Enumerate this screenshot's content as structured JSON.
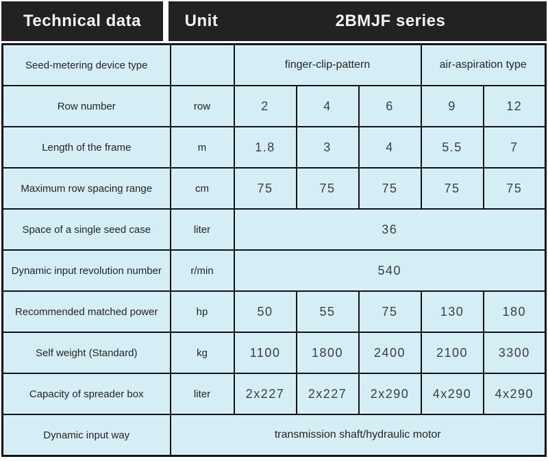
{
  "header": {
    "technical_data_label": "Technical data",
    "unit_label": "Unit",
    "series_label": "2BMJF series"
  },
  "colors": {
    "page_bg": "#ffffff",
    "header_bg": "#222225",
    "header_text": "#f4f4f4",
    "cell_bg": "#d5edf4",
    "border": "#111111",
    "label_text": "#242424",
    "value_text": "#3d3d3d"
  },
  "table": {
    "rows": [
      {
        "label": "Seed-metering device type",
        "cells": [
          {
            "text": "",
            "span": 1,
            "kind": "unit"
          },
          {
            "text": "finger-clip-pattern",
            "span": 3,
            "kind": "text"
          },
          {
            "text": "air-aspiration type",
            "span": 2,
            "kind": "text"
          }
        ]
      },
      {
        "label": "Row number",
        "cells": [
          {
            "text": "row",
            "span": 1,
            "kind": "unit"
          },
          {
            "text": "2",
            "span": 1,
            "kind": "num"
          },
          {
            "text": "4",
            "span": 1,
            "kind": "num"
          },
          {
            "text": "6",
            "span": 1,
            "kind": "num"
          },
          {
            "text": "9",
            "span": 1,
            "kind": "num"
          },
          {
            "text": "12",
            "span": 1,
            "kind": "num"
          }
        ]
      },
      {
        "label": "Length of the frame",
        "cells": [
          {
            "text": "m",
            "span": 1,
            "kind": "unit"
          },
          {
            "text": "1.8",
            "span": 1,
            "kind": "num"
          },
          {
            "text": "3",
            "span": 1,
            "kind": "num"
          },
          {
            "text": "4",
            "span": 1,
            "kind": "num"
          },
          {
            "text": "5.5",
            "span": 1,
            "kind": "num"
          },
          {
            "text": "7",
            "span": 1,
            "kind": "num"
          }
        ]
      },
      {
        "label": "Maximum row spacing range",
        "cells": [
          {
            "text": "cm",
            "span": 1,
            "kind": "unit"
          },
          {
            "text": "75",
            "span": 1,
            "kind": "num"
          },
          {
            "text": "75",
            "span": 1,
            "kind": "num"
          },
          {
            "text": "75",
            "span": 1,
            "kind": "num"
          },
          {
            "text": "75",
            "span": 1,
            "kind": "num"
          },
          {
            "text": "75",
            "span": 1,
            "kind": "num"
          }
        ]
      },
      {
        "label": "Space of a single seed case",
        "cells": [
          {
            "text": "liter",
            "span": 1,
            "kind": "unit"
          },
          {
            "text": "36",
            "span": 5,
            "kind": "num"
          }
        ]
      },
      {
        "label": "Dynamic input revolution number",
        "cells": [
          {
            "text": "r/min",
            "span": 1,
            "kind": "unit"
          },
          {
            "text": "540",
            "span": 5,
            "kind": "num"
          }
        ]
      },
      {
        "label": "Recommended matched power",
        "cells": [
          {
            "text": "hp",
            "span": 1,
            "kind": "unit"
          },
          {
            "text": "50",
            "span": 1,
            "kind": "num"
          },
          {
            "text": "55",
            "span": 1,
            "kind": "num"
          },
          {
            "text": "75",
            "span": 1,
            "kind": "num"
          },
          {
            "text": "130",
            "span": 1,
            "kind": "num"
          },
          {
            "text": "180",
            "span": 1,
            "kind": "num"
          }
        ]
      },
      {
        "label": "Self weight (Standard)",
        "cells": [
          {
            "text": "kg",
            "span": 1,
            "kind": "unit"
          },
          {
            "text": "1100",
            "span": 1,
            "kind": "num"
          },
          {
            "text": "1800",
            "span": 1,
            "kind": "num"
          },
          {
            "text": "2400",
            "span": 1,
            "kind": "num"
          },
          {
            "text": "2100",
            "span": 1,
            "kind": "num"
          },
          {
            "text": "3300",
            "span": 1,
            "kind": "num"
          }
        ]
      },
      {
        "label": "Capacity of spreader box",
        "cells": [
          {
            "text": "liter",
            "span": 1,
            "kind": "unit"
          },
          {
            "text": "2x227",
            "span": 1,
            "kind": "num"
          },
          {
            "text": "2x227",
            "span": 1,
            "kind": "num"
          },
          {
            "text": "2x290",
            "span": 1,
            "kind": "num"
          },
          {
            "text": "4x290",
            "span": 1,
            "kind": "num"
          },
          {
            "text": "4x290",
            "span": 1,
            "kind": "num"
          }
        ]
      },
      {
        "label": "Dynamic input way",
        "cells": [
          {
            "text": "transmission shaft/hydraulic motor",
            "span": 6,
            "kind": "text"
          }
        ]
      }
    ]
  }
}
